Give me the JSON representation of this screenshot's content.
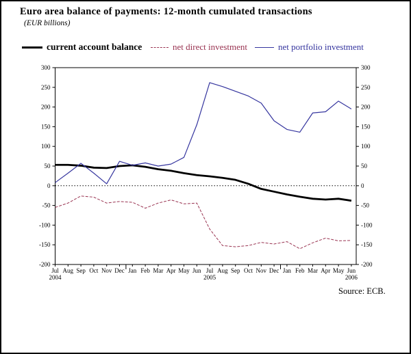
{
  "header": {
    "title": "Euro area balance of payments: 12-month cumulated transactions",
    "subtitle": "(EUR billions)"
  },
  "source": "Source: ECB.",
  "colors": {
    "current_account": "#000000",
    "direct_investment": "#993351",
    "portfolio_investment": "#34349E"
  },
  "legend": [
    {
      "label": "current account balance",
      "color": "#000000",
      "style": "solid-thick"
    },
    {
      "label": "net direct investment",
      "color": "#993351",
      "style": "dashed"
    },
    {
      "label": "net portfolio investment",
      "color": "#34349E",
      "style": "solid-thin"
    }
  ],
  "chart_data": {
    "type": "line",
    "title": "Euro area balance of payments: 12-month cumulated transactions",
    "ylabel": "EUR billions",
    "x": [
      "Jul",
      "Aug",
      "Sep",
      "Oct",
      "Nov",
      "Dec",
      "Jan",
      "Feb",
      "Mar",
      "Apr",
      "May",
      "Jun",
      "Jul",
      "Aug",
      "Sep",
      "Oct",
      "Nov",
      "Dec",
      "Jan",
      "Feb",
      "Mar",
      "Apr",
      "May",
      "Jun"
    ],
    "year_labels": [
      {
        "index": 0,
        "label": "2004"
      },
      {
        "index": 12,
        "label": "2005"
      },
      {
        "index": 23,
        "label": "2006"
      }
    ],
    "series": [
      {
        "name": "current account balance",
        "color": "#000000",
        "dash": null,
        "width": 2.8,
        "values": [
          53,
          53,
          51,
          46,
          45,
          50,
          52,
          48,
          42,
          38,
          32,
          27,
          24,
          20,
          15,
          5,
          -8,
          -15,
          -22,
          -28,
          -33,
          -35,
          -33,
          -38
        ]
      },
      {
        "name": "net direct investment",
        "color": "#993351",
        "dash": "4,2",
        "width": 1,
        "values": [
          -55,
          -44,
          -26,
          -29,
          -44,
          -40,
          -42,
          -57,
          -44,
          -36,
          -46,
          -44,
          -110,
          -152,
          -155,
          -152,
          -144,
          -148,
          -142,
          -160,
          -145,
          -133,
          -140,
          -139
        ]
      },
      {
        "name": "net portfolio investment",
        "color": "#34349E",
        "dash": null,
        "width": 1.2,
        "values": [
          8,
          32,
          57,
          32,
          5,
          62,
          52,
          58,
          50,
          55,
          72,
          155,
          262,
          252,
          240,
          228,
          210,
          165,
          143,
          136,
          185,
          188,
          215,
          195
        ]
      }
    ],
    "ylim": [
      -200,
      300
    ],
    "ytick_step": 50,
    "grid": false,
    "zero_line": "dotted",
    "legend_position": "top"
  }
}
